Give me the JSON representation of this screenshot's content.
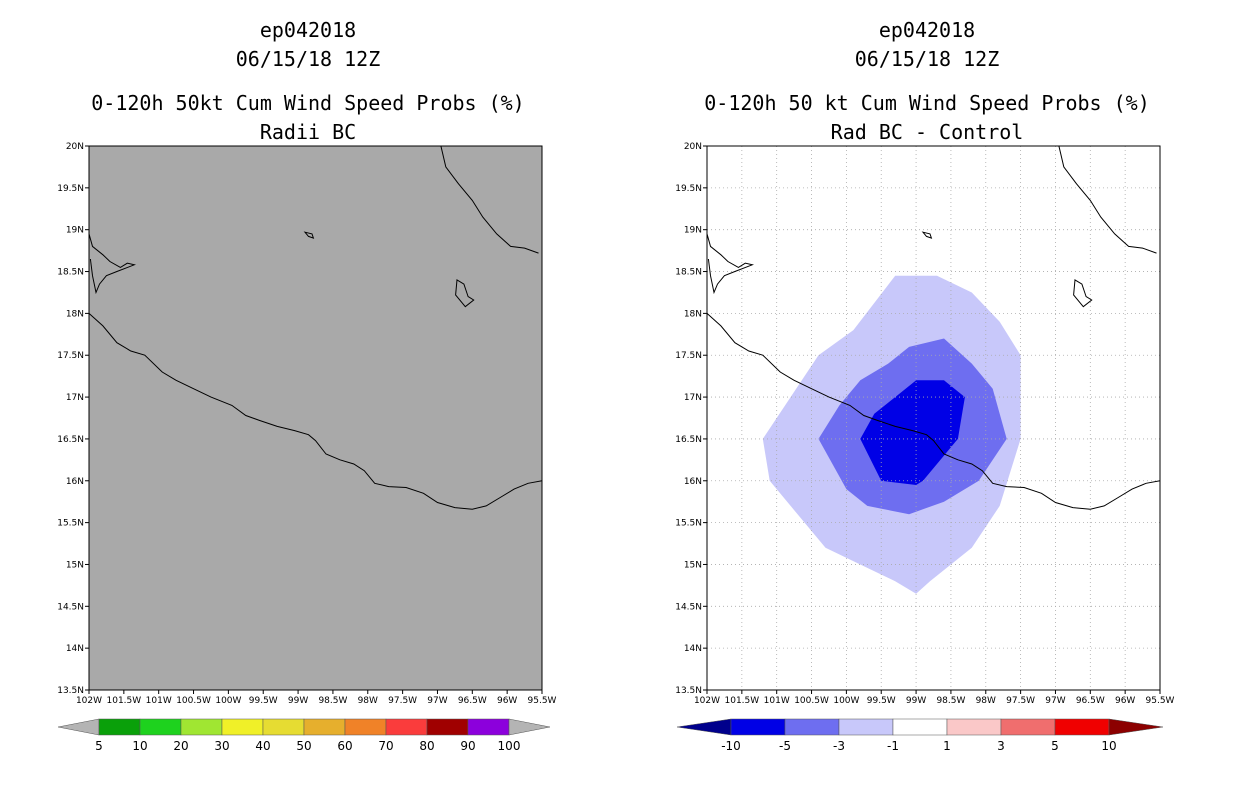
{
  "colors": {
    "land_gray": "#a9a9a9",
    "coast": "#000000",
    "grid": "#aaaaaa",
    "prob_colorbar": [
      "#0aa00a",
      "#1ed21e",
      "#a0e632",
      "#f0f028",
      "#e6dc32",
      "#e6af2d",
      "#f08228",
      "#fa3c3c",
      "#a00000",
      "#8c00dc"
    ],
    "prob_under": "#b4b4b4",
    "prob_over": "#b4b4b4",
    "diff_colorbar": [
      "#0000e6",
      "#6e6ef0",
      "#c8c8fa",
      "#ffffff",
      "#fac8c8",
      "#f06e6e",
      "#f00000"
    ],
    "diff_under": "#00008c",
    "diff_over": "#8c0000"
  },
  "chart_data": [
    {
      "type": "map",
      "title_lines": [
        "ep042018",
        "06/15/18 12Z",
        "0-120h 50kt Cum Wind Speed Probs (%)",
        "Radii BC"
      ],
      "x_tick_labels": [
        "102W",
        "101.5W",
        "101W",
        "100.5W",
        "100W",
        "99.5W",
        "99W",
        "98.5W",
        "98W",
        "97.5W",
        "97W",
        "96.5W",
        "96W",
        "95.5W"
      ],
      "y_tick_labels": [
        "13.5N",
        "14N",
        "14.5N",
        "15N",
        "15.5N",
        "16N",
        "16.5N",
        "17N",
        "17.5N",
        "18N",
        "18.5N",
        "19N",
        "19.5N",
        "20N"
      ],
      "lon_range": [
        -102,
        -95.5
      ],
      "lat_range": [
        13.5,
        20
      ],
      "field": "uniform below 5%",
      "colorbar": {
        "levels": [
          "5",
          "10",
          "20",
          "30",
          "40",
          "50",
          "60",
          "70",
          "80",
          "90",
          "100"
        ],
        "extend": "both"
      }
    },
    {
      "type": "map",
      "title_lines": [
        "ep042018",
        "06/15/18 12Z",
        "0-120h 50 kt Cum Wind Speed Probs (%)",
        "Rad BC - Control"
      ],
      "x_tick_labels": [
        "102W",
        "101.5W",
        "101W",
        "100.5W",
        "100W",
        "99.5W",
        "99W",
        "98.5W",
        "98W",
        "97.5W",
        "97W",
        "96.5W",
        "96W",
        "95.5W"
      ],
      "y_tick_labels": [
        "13.5N",
        "14N",
        "14.5N",
        "15N",
        "15.5N",
        "16N",
        "16.5N",
        "17N",
        "17.5N",
        "18N",
        "18.5N",
        "19N",
        "19.5N",
        "20N"
      ],
      "lon_range": [
        -102,
        -95.5
      ],
      "lat_range": [
        13.5,
        20
      ],
      "grid": true,
      "contours": [
        {
          "level": "-1 to -3",
          "polygon": [
            [
              -99.3,
              18.45
            ],
            [
              -98.7,
              18.45
            ],
            [
              -98.2,
              18.25
            ],
            [
              -97.8,
              17.9
            ],
            [
              -97.5,
              17.5
            ],
            [
              -97.5,
              17.0
            ],
            [
              -97.5,
              16.5
            ],
            [
              -97.8,
              15.7
            ],
            [
              -98.2,
              15.2
            ],
            [
              -98.5,
              15.0
            ],
            [
              -98.8,
              14.8
            ],
            [
              -99.0,
              14.65
            ],
            [
              -99.3,
              14.8
            ],
            [
              -99.8,
              15.0
            ],
            [
              -100.3,
              15.2
            ],
            [
              -100.8,
              15.7
            ],
            [
              -101.1,
              16.0
            ],
            [
              -101.2,
              16.5
            ],
            [
              -100.8,
              17.0
            ],
            [
              -100.4,
              17.5
            ],
            [
              -99.9,
              17.8
            ]
          ]
        },
        {
          "level": "-3 to -5",
          "polygon": [
            [
              -99.1,
              17.6
            ],
            [
              -98.6,
              17.7
            ],
            [
              -98.2,
              17.4
            ],
            [
              -97.9,
              17.1
            ],
            [
              -97.7,
              16.5
            ],
            [
              -98.1,
              16.0
            ],
            [
              -98.6,
              15.75
            ],
            [
              -99.1,
              15.6
            ],
            [
              -99.7,
              15.7
            ],
            [
              -100.0,
              15.9
            ],
            [
              -100.4,
              16.5
            ],
            [
              -100.1,
              16.9
            ],
            [
              -99.8,
              17.2
            ],
            [
              -99.4,
              17.4
            ]
          ]
        },
        {
          "level": "-5 to -10",
          "polygon": [
            [
              -99.0,
              17.2
            ],
            [
              -98.6,
              17.2
            ],
            [
              -98.3,
              17.0
            ],
            [
              -98.4,
              16.5
            ],
            [
              -98.9,
              16.0
            ],
            [
              -99.0,
              15.95
            ],
            [
              -99.5,
              16.0
            ],
            [
              -99.8,
              16.5
            ],
            [
              -99.6,
              16.8
            ],
            [
              -99.3,
              17.0
            ]
          ]
        }
      ],
      "colorbar": {
        "levels": [
          "-10",
          "-5",
          "-3",
          "-1",
          "1",
          "3",
          "5",
          "10"
        ],
        "extend": "both"
      }
    }
  ]
}
